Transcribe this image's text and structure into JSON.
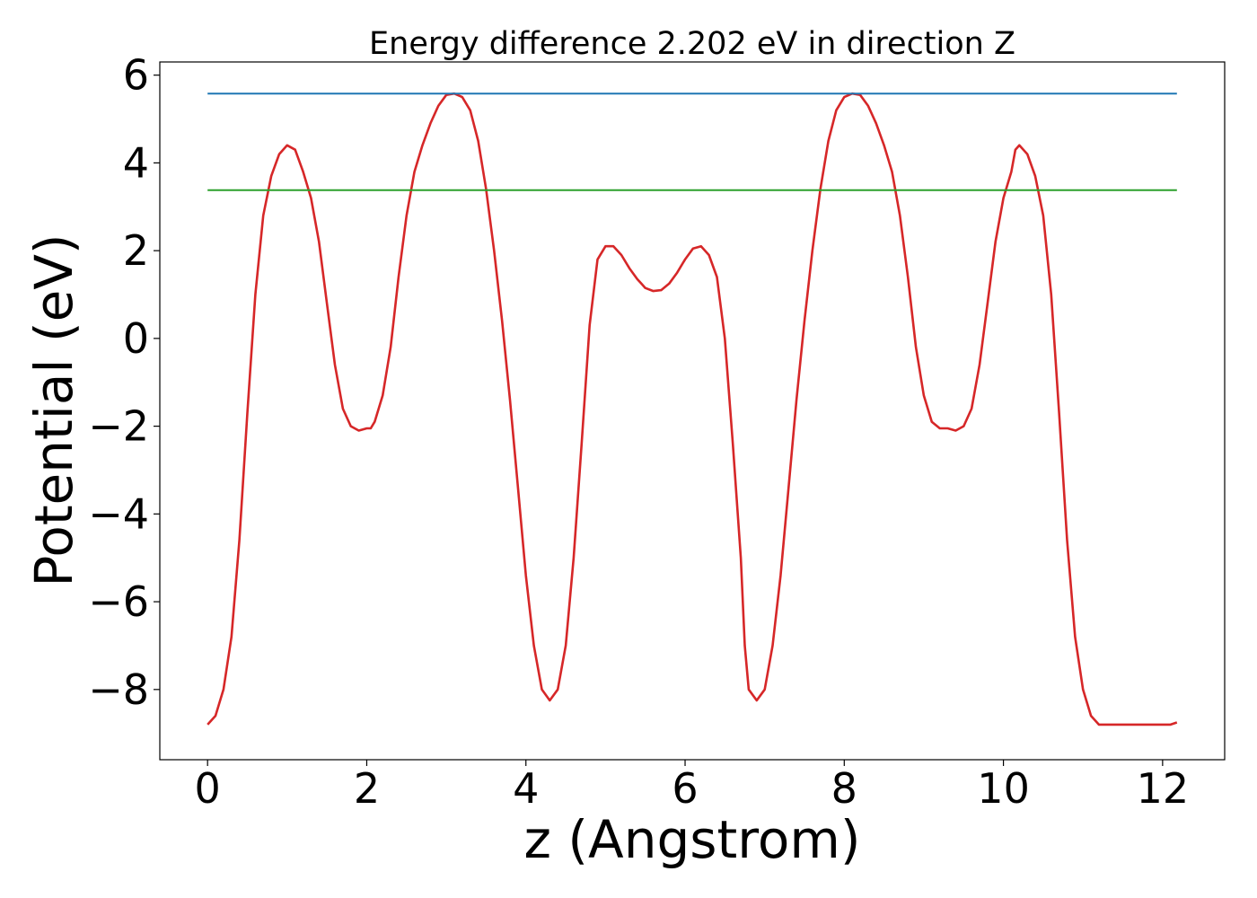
{
  "chart_data": {
    "type": "line",
    "title": "Energy difference 2.202 eV in direction Z",
    "xlabel": "z (Angstrom)",
    "ylabel": "Potential (eV)",
    "xlim": [
      -0.6,
      12.78
    ],
    "ylim": [
      -9.6,
      6.3
    ],
    "xticks": [
      0,
      2,
      4,
      6,
      8,
      10,
      12
    ],
    "yticks": [
      -8,
      -6,
      -4,
      -2,
      0,
      2,
      4,
      6
    ],
    "xtick_labels": [
      "0",
      "2",
      "4",
      "6",
      "8",
      "10",
      "12"
    ],
    "ytick_labels": [
      "−8",
      "−6",
      "−4",
      "−2",
      "0",
      "2",
      "4",
      "6"
    ],
    "grid": false,
    "legend": "none",
    "series": [
      {
        "color": "#d62728",
        "x": [
          0.0,
          0.1,
          0.2,
          0.3,
          0.4,
          0.5,
          0.6,
          0.7,
          0.8,
          0.9,
          1.0,
          1.1,
          1.2,
          1.3,
          1.4,
          1.5,
          1.6,
          1.7,
          1.8,
          1.9,
          2.0,
          2.05,
          2.1,
          2.2,
          2.3,
          2.4,
          2.5,
          2.6,
          2.7,
          2.8,
          2.9,
          3.0,
          3.1,
          3.2,
          3.3,
          3.4,
          3.5,
          3.6,
          3.7,
          3.8,
          3.9,
          4.0,
          4.1,
          4.2,
          4.3,
          4.4,
          4.5,
          4.6,
          4.7,
          4.8,
          4.9,
          5.0,
          5.1,
          5.2,
          5.3,
          5.4,
          5.45,
          5.5,
          5.6,
          5.7,
          5.8,
          5.9,
          6.0,
          6.1,
          6.2,
          6.3,
          6.4,
          6.5,
          6.6,
          6.7,
          6.75,
          6.8,
          6.9,
          7.0,
          7.1,
          7.2,
          7.3,
          7.4,
          7.5,
          7.6,
          7.7,
          7.8,
          7.9,
          8.0,
          8.1,
          8.2,
          8.3,
          8.4,
          8.5,
          8.6,
          8.7,
          8.8,
          8.9,
          9.0,
          9.1,
          9.2,
          9.3,
          9.4,
          9.5,
          9.6,
          9.7,
          9.8,
          9.9,
          10.0,
          10.1,
          10.15,
          10.2,
          10.3,
          10.4,
          10.5,
          10.6,
          10.7,
          10.8,
          10.9,
          11.0,
          11.1,
          11.2,
          11.3,
          11.4,
          11.5,
          11.6,
          11.7,
          11.8,
          11.9,
          12.0,
          12.1,
          12.18
        ],
        "y": [
          -8.8,
          -8.6,
          -8.0,
          -6.8,
          -4.6,
          -1.7,
          1.0,
          2.8,
          3.7,
          4.2,
          4.4,
          4.3,
          3.8,
          3.2,
          2.2,
          0.8,
          -0.6,
          -1.6,
          -2.0,
          -2.1,
          -2.05,
          -2.05,
          -1.9,
          -1.3,
          -0.2,
          1.4,
          2.8,
          3.8,
          4.4,
          4.9,
          5.3,
          5.55,
          5.58,
          5.5,
          5.2,
          4.5,
          3.4,
          2.0,
          0.4,
          -1.4,
          -3.4,
          -5.4,
          -7.0,
          -8.0,
          -8.25,
          -8.0,
          -7.0,
          -5.0,
          -2.4,
          0.3,
          1.8,
          2.1,
          2.1,
          1.9,
          1.6,
          1.35,
          1.25,
          1.15,
          1.08,
          1.1,
          1.25,
          1.5,
          1.8,
          2.05,
          2.1,
          1.9,
          1.4,
          0.0,
          -2.4,
          -5.0,
          -7.0,
          -8.0,
          -8.25,
          -8.0,
          -7.0,
          -5.4,
          -3.4,
          -1.4,
          0.4,
          2.0,
          3.4,
          4.5,
          5.2,
          5.5,
          5.58,
          5.55,
          5.3,
          4.9,
          4.4,
          3.8,
          2.8,
          1.4,
          -0.2,
          -1.3,
          -1.9,
          -2.05,
          -2.05,
          -2.1,
          -2.0,
          -1.6,
          -0.6,
          0.8,
          2.2,
          3.2,
          3.8,
          4.3,
          4.4,
          4.2,
          3.7,
          2.8,
          1.0,
          -1.7,
          -4.6,
          -6.8,
          -8.0,
          -8.6,
          -8.8,
          -8.8,
          -8.8,
          -8.8,
          -8.8,
          -8.8,
          -8.8,
          -8.8,
          -8.8,
          -8.8,
          -8.75
        ]
      },
      {
        "color": "#1f77b4",
        "x": [
          0.0,
          12.18
        ],
        "y": [
          5.58,
          5.58
        ]
      },
      {
        "color": "#2ca02c",
        "x": [
          0.0,
          12.18
        ],
        "y": [
          3.38,
          3.38
        ]
      }
    ]
  }
}
